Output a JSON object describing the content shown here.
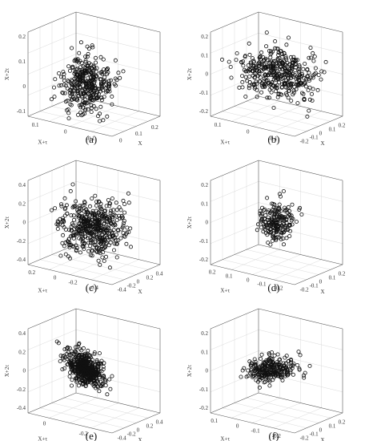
{
  "chart_data": [
    {
      "type": "scatter",
      "panel_label": "(a)",
      "xlabel": "X",
      "ylabel": "X+τ",
      "zlabel": "X+2τ",
      "x_ticks": [
        "0.2",
        "0.1",
        "0"
      ],
      "y_ticks": [
        "0.1",
        "0",
        "-0.1"
      ],
      "z_ticks": [
        "0.2",
        "0.1",
        "0",
        "-0.1"
      ],
      "xlim": [
        -0.1,
        0.2
      ],
      "ylim": [
        -0.15,
        0.15
      ],
      "zlim": [
        -0.15,
        0.25
      ],
      "cloud": {
        "n": 380,
        "center": [
          0.0,
          0.0,
          0.02
        ],
        "spread": [
          0.04,
          0.04,
          0.06
        ],
        "shape": "vertical"
      }
    },
    {
      "type": "scatter",
      "panel_label": "(b)",
      "xlabel": "X",
      "ylabel": "X+τ",
      "zlabel": "X+2τ",
      "x_ticks": [
        "0.2",
        "0.1",
        "0",
        "-0.1",
        "-0.2"
      ],
      "y_ticks": [
        "0.1",
        "0",
        "-0.1"
      ],
      "z_ticks": [
        "0.2",
        "0.1",
        "0",
        "-0.1",
        "-0.2"
      ],
      "xlim": [
        -0.2,
        0.2
      ],
      "ylim": [
        -0.15,
        0.15
      ],
      "zlim": [
        -0.25,
        0.25
      ],
      "cloud": {
        "n": 420,
        "center": [
          0.0,
          0.0,
          0.0
        ],
        "spread": [
          0.07,
          0.06,
          0.07
        ],
        "shape": "round"
      }
    },
    {
      "type": "scatter",
      "panel_label": "(c)",
      "xlabel": "X",
      "ylabel": "X+τ",
      "zlabel": "X+2τ",
      "x_ticks": [
        "0.4",
        "0.2",
        "0",
        "-0.2",
        "-0.4"
      ],
      "y_ticks": [
        "0.2",
        "0",
        "-0.2",
        "-0.4"
      ],
      "z_ticks": [
        "0.4",
        "0.2",
        "0",
        "-0.2",
        "-0.4"
      ],
      "xlim": [
        -0.4,
        0.4
      ],
      "ylim": [
        -0.4,
        0.3
      ],
      "zlim": [
        -0.4,
        0.4
      ],
      "cloud": {
        "n": 480,
        "center": [
          0.0,
          -0.05,
          -0.05
        ],
        "spread": [
          0.14,
          0.12,
          0.12
        ],
        "shape": "round"
      }
    },
    {
      "type": "scatter",
      "panel_label": "(d)",
      "xlabel": "X",
      "ylabel": "X+τ",
      "zlabel": "X+2τ",
      "x_ticks": [
        "0.2",
        "0.1",
        "0",
        "-0.1",
        "-0.2"
      ],
      "y_ticks": [
        "0.2",
        "0.1",
        "0",
        "-0.1",
        "-0.2"
      ],
      "z_ticks": [
        "0.2",
        "0.1",
        "0",
        "-0.1",
        "-0.2"
      ],
      "xlim": [
        -0.2,
        0.2
      ],
      "ylim": [
        -0.2,
        0.2
      ],
      "zlim": [
        -0.25,
        0.25
      ],
      "cloud": {
        "n": 200,
        "center": [
          0.0,
          0.0,
          0.0
        ],
        "spread": [
          0.04,
          0.035,
          0.05
        ],
        "shape": "vertical"
      }
    },
    {
      "type": "scatter",
      "panel_label": "(e)",
      "xlabel": "X",
      "ylabel": "X+τ",
      "zlabel": "X+2τ",
      "x_ticks": [
        "0.4",
        "0.2",
        "0",
        "-0.2",
        "-0.4"
      ],
      "y_ticks": [
        "0",
        "-0.2"
      ],
      "z_ticks": [
        "0.4",
        "0.2",
        "0",
        "-0.2",
        "-0.4"
      ],
      "xlim": [
        -0.4,
        0.4
      ],
      "ylim": [
        -0.3,
        0.2
      ],
      "zlim": [
        -0.45,
        0.45
      ],
      "cloud": {
        "n": 520,
        "center": [
          0.0,
          0.0,
          0.0
        ],
        "spread": [
          0.06,
          0.05,
          0.08
        ],
        "shape": "dense"
      }
    },
    {
      "type": "scatter",
      "panel_label": "(f)",
      "xlabel": "X",
      "ylabel": "X+τ",
      "zlabel": "X+2τ",
      "x_ticks": [
        "0.2",
        "0.1",
        "0",
        "-0.1",
        "-0.2"
      ],
      "y_ticks": [
        "0.1",
        "0",
        "-0.1",
        "-0.2"
      ],
      "z_ticks": [
        "0.2",
        "0.1",
        "0",
        "-0.1",
        "-0.2"
      ],
      "xlim": [
        -0.2,
        0.2
      ],
      "ylim": [
        -0.2,
        0.15
      ],
      "zlim": [
        -0.25,
        0.25
      ],
      "cloud": {
        "n": 260,
        "center": [
          0.0,
          0.0,
          0.0
        ],
        "spread": [
          0.07,
          0.04,
          0.025
        ],
        "shape": "flat"
      }
    }
  ]
}
